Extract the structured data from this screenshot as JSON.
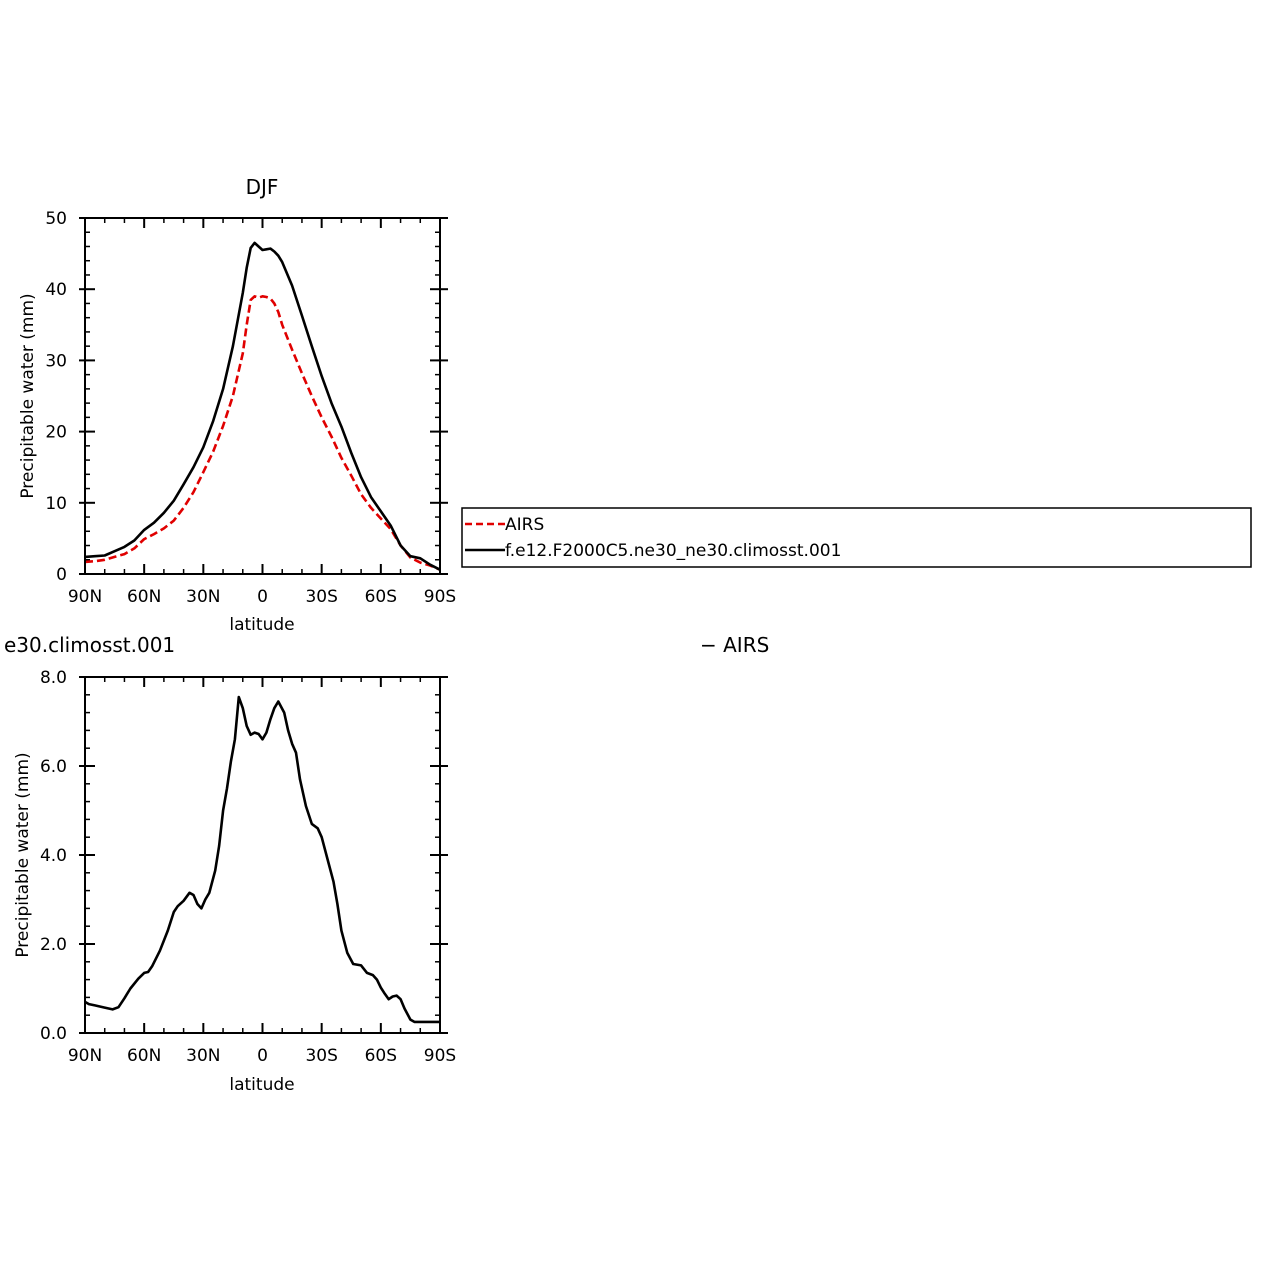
{
  "chart_data": [
    {
      "type": "line",
      "title": "DJF",
      "xlabel": "latitude",
      "ylabel": "Precipitable water (mm)",
      "xlim": [
        90,
        -90
      ],
      "ylim": [
        0,
        50
      ],
      "xticks": [
        "90N",
        "60N",
        "30N",
        "0",
        "30S",
        "60S",
        "90S"
      ],
      "yticks": [
        "0",
        "10",
        "20",
        "30",
        "40",
        "50"
      ],
      "x": [
        90,
        85,
        80,
        75,
        70,
        65,
        60,
        55,
        50,
        45,
        40,
        35,
        30,
        25,
        20,
        15,
        10,
        8,
        6,
        4,
        2,
        0,
        -2,
        -4,
        -6,
        -8,
        -10,
        -15,
        -20,
        -25,
        -30,
        -35,
        -40,
        -45,
        -50,
        -55,
        -60,
        -65,
        -70,
        -75,
        -80,
        -85,
        -90
      ],
      "series": [
        {
          "name": "AIRS",
          "color": "#e00000",
          "dash": "dashed",
          "values": [
            1.7,
            1.8,
            2.0,
            2.4,
            2.8,
            3.6,
            4.9,
            5.6,
            6.4,
            7.5,
            9.3,
            11.5,
            14.3,
            17.2,
            20.8,
            25.0,
            31.0,
            35.0,
            38.5,
            39.0,
            38.8,
            39.0,
            38.9,
            38.7,
            38.0,
            36.8,
            35.0,
            31.5,
            28.2,
            25.0,
            22.0,
            19.3,
            16.3,
            13.8,
            11.2,
            9.3,
            7.8,
            6.3,
            4.0,
            2.3,
            1.6,
            1.2,
            0.6
          ]
        },
        {
          "name": "f.e12.F2000C5.ne30_ne30.climosst.001",
          "color": "#000000",
          "dash": "solid",
          "values": [
            2.4,
            2.5,
            2.6,
            3.2,
            3.8,
            4.7,
            6.2,
            7.2,
            8.6,
            10.3,
            12.6,
            15.0,
            17.8,
            21.5,
            26.0,
            32.0,
            39.5,
            43.0,
            45.8,
            46.5,
            46.0,
            45.5,
            45.6,
            45.7,
            45.3,
            44.7,
            43.8,
            40.5,
            36.3,
            32.0,
            27.8,
            24.0,
            20.7,
            17.0,
            13.6,
            10.8,
            8.8,
            6.8,
            4.0,
            2.5,
            2.2,
            1.3,
            0.6
          ]
        }
      ],
      "legend": {
        "entries": [
          "AIRS",
          "f.e12.F2000C5.ne30_ne30.climosst.001"
        ],
        "placement": "right of plot"
      }
    },
    {
      "type": "line",
      "title": "e30.climosst.001",
      "title_right": "− AIRS",
      "xlabel": "latitude",
      "ylabel": "Precipitable water (mm)",
      "xlim": [
        90,
        -90
      ],
      "ylim": [
        0,
        8
      ],
      "xticks": [
        "90N",
        "60N",
        "30N",
        "0",
        "30S",
        "60S",
        "90S"
      ],
      "yticks": [
        "0.0",
        "2.0",
        "4.0",
        "6.0",
        "8.0"
      ],
      "x": [
        90,
        88,
        85,
        80,
        76,
        73,
        70,
        67,
        63,
        60,
        58,
        56,
        52,
        48,
        45,
        43,
        40,
        37,
        35,
        33,
        31,
        29,
        27,
        24,
        22,
        20,
        18,
        16,
        14,
        12,
        10,
        8,
        6,
        4,
        2,
        0,
        -2,
        -4,
        -6,
        -8,
        -11,
        -13,
        -15,
        -17,
        -19,
        -22,
        -25,
        -28,
        -30,
        -33,
        -36,
        -38,
        -40,
        -43,
        -46,
        -50,
        -53,
        -56,
        -58,
        -60,
        -62,
        -64,
        -66,
        -68,
        -70,
        -72,
        -75,
        -77,
        -79,
        -82,
        -84,
        -86,
        -88,
        -90
      ],
      "series": [
        {
          "name": "",
          "color": "#000000",
          "dash": "solid",
          "values": [
            0.7,
            0.65,
            0.62,
            0.57,
            0.53,
            0.58,
            0.78,
            1.0,
            1.22,
            1.35,
            1.37,
            1.5,
            1.85,
            2.3,
            2.72,
            2.85,
            2.97,
            3.15,
            3.1,
            2.9,
            2.8,
            3.0,
            3.15,
            3.65,
            4.2,
            5.0,
            5.5,
            6.1,
            6.6,
            7.55,
            7.3,
            6.9,
            6.7,
            6.75,
            6.72,
            6.6,
            6.75,
            7.05,
            7.3,
            7.45,
            7.2,
            6.8,
            6.5,
            6.3,
            5.7,
            5.1,
            4.7,
            4.6,
            4.4,
            3.9,
            3.4,
            2.9,
            2.3,
            1.8,
            1.55,
            1.52,
            1.35,
            1.3,
            1.2,
            1.02,
            0.88,
            0.76,
            0.82,
            0.84,
            0.76,
            0.55,
            0.3,
            0.25,
            0.25,
            0.25,
            0.25,
            0.25,
            0.25,
            0.25
          ]
        }
      ]
    }
  ]
}
